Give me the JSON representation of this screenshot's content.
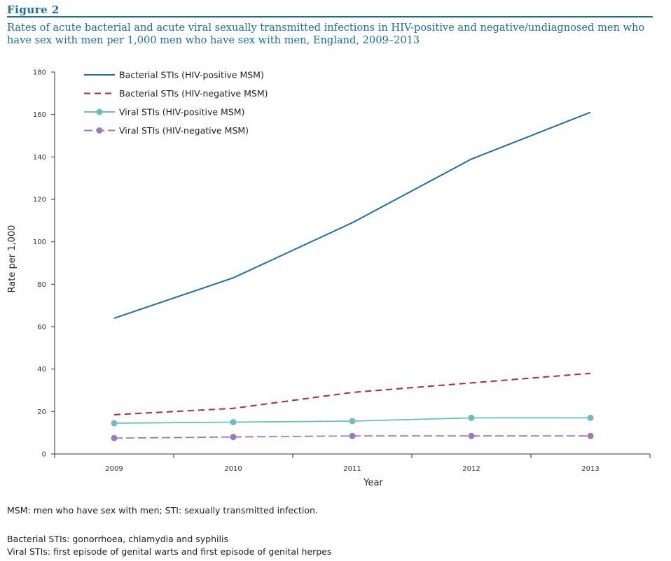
{
  "figure": {
    "label": "Figure 2",
    "title": "Rates of acute bacterial and acute viral sexually transmitted infections in HIV-positive and negative/undiagnosed men who have sex with men per 1,000 men who have sex with men, England, 2009–2013"
  },
  "notes": {
    "abbreviations": "MSM: men who have sex with men; STI: sexually transmitted infection.",
    "bacterial": "Bacterial STIs: gonorrhoea, chlamydia and syphilis",
    "viral": "Viral STIs: first episode of genital warts and first episode of genital herpes"
  },
  "chart_data": {
    "type": "line",
    "title": "",
    "xlabel": "Year",
    "ylabel": "Rate per 1,000",
    "categories": [
      "2009",
      "2010",
      "2011",
      "2012",
      "2013"
    ],
    "ylim": [
      0,
      180
    ],
    "yticks": [
      0,
      20,
      40,
      60,
      80,
      100,
      120,
      140,
      160,
      180
    ],
    "grid": false,
    "legend_position": "top-left",
    "series": [
      {
        "name": "Bacterial STIs (HIV-positive MSM)",
        "values": [
          64,
          83,
          109,
          139,
          161
        ],
        "color": "#1b6ea8",
        "style": "solid",
        "marker": "none"
      },
      {
        "name": "Bacterial STIs (HIV-negative MSM)",
        "values": [
          18.5,
          21.5,
          29,
          33.5,
          38
        ],
        "color": "#b22a2a",
        "style": "dashed",
        "marker": "none"
      },
      {
        "name": "Viral STIs (HIV-positive MSM)",
        "values": [
          14.5,
          15,
          15.5,
          17,
          17
        ],
        "color": "#6dbdc0",
        "style": "solid",
        "marker": "circle"
      },
      {
        "name": "Viral STIs (HIV-negative MSM)",
        "values": [
          7.5,
          8,
          8.5,
          8.5,
          8.5
        ],
        "color": "#a07ab8",
        "style": "dashed",
        "marker": "circle"
      }
    ]
  }
}
